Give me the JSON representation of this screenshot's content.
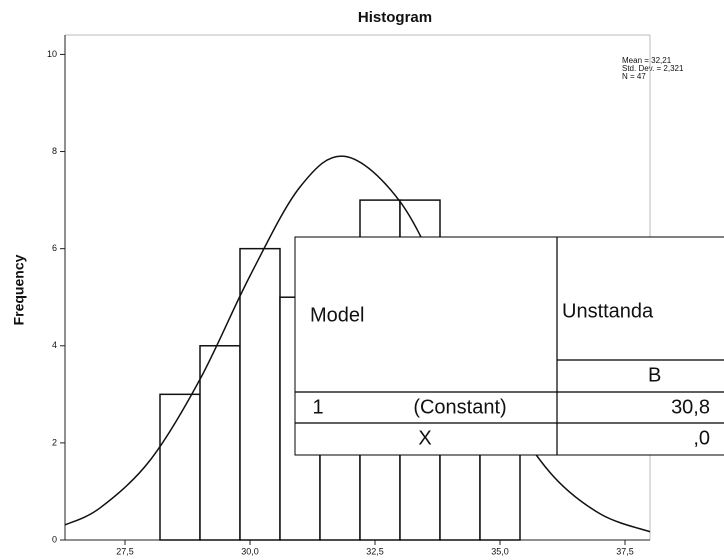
{
  "chart_data": {
    "type": "histogram",
    "title": "Histogram",
    "y_label": "Frequency",
    "stats": [
      "Mean = 32,21",
      "Std. Dev. = 2,321",
      "N = 47"
    ],
    "bins": [
      28.2,
      29.0,
      29.8,
      30.6,
      31.4,
      32.2,
      33.0,
      33.8,
      34.6,
      35.4
    ],
    "values": [
      3,
      4,
      6,
      5,
      6,
      7,
      7,
      6,
      3
    ],
    "color": "#ffffff",
    "curve": {
      "x": [
        26.3,
        27,
        28,
        29,
        30,
        31,
        31.9,
        33,
        34,
        35,
        36,
        37,
        38
      ],
      "values": [
        0.31,
        0.66,
        1.64,
        3.31,
        5.44,
        7.27,
        7.9,
        6.97,
        5.01,
        2.93,
        1.39,
        0.54,
        0.17
      ]
    },
    "xlim": [
      26.3,
      38.0
    ],
    "ylim": [
      0,
      10.4
    ],
    "xticks": [
      {
        "value": 27.5,
        "label": "27,5"
      },
      {
        "value": 30.0,
        "label": "30,0"
      },
      {
        "value": 32.5,
        "label": "32,5"
      },
      {
        "value": 35.0,
        "label": "35,0"
      },
      {
        "value": 37.5,
        "label": "37,5"
      }
    ],
    "yticks": [
      0,
      2,
      4,
      6,
      8,
      10
    ]
  },
  "table": {
    "header": {
      "model": "Model",
      "group": "Unsttanda",
      "sub": "B"
    },
    "rows": [
      {
        "model": "1",
        "term": "(Constant)",
        "b": "30,8"
      },
      {
        "term": "X",
        "b": ",0"
      }
    ]
  }
}
